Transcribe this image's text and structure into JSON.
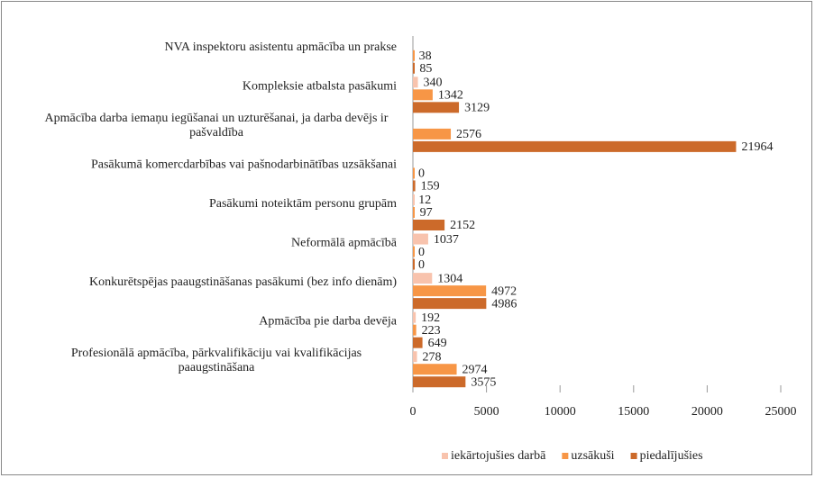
{
  "chart_data": {
    "type": "barh",
    "categories": [
      "NVA inspektoru asistentu apmācība un prakse",
      "Kompleksie atbalsta pasākumi",
      "Apmācība darba iemaņu iegūšanai un uzturēšanai, ja darba devējs ir pašvaldība",
      "Pasākumā komercdarbības vai pašnodarbinātības uzsākšanai",
      "Pasākumi noteiktām personu grupām",
      "Neformālā apmācībā",
      "Konkurētspējas paaugstināšanas pasākumi (bez info dienām)",
      "Apmācība pie darba devēja",
      "Profesionālā apmācība, pārkvalifikāciju vai kvalifikācijas paaugstināšana"
    ],
    "series": [
      {
        "name": "iekārtojušies darbā",
        "color": "#f8c3ad",
        "values": [
          null,
          340,
          null,
          null,
          12,
          1037,
          1304,
          192,
          278
        ]
      },
      {
        "name": "uzsākuši",
        "color": "#f79646",
        "values": [
          38,
          1342,
          2576,
          0,
          97,
          0,
          4972,
          223,
          2974
        ]
      },
      {
        "name": "piedalījušies",
        "color": "#cc6a2a",
        "values": [
          85,
          3129,
          21964,
          159,
          2152,
          0,
          4986,
          649,
          3575
        ]
      }
    ],
    "xlim": [
      0,
      25000
    ],
    "xticks": [
      0,
      5000,
      10000,
      15000,
      20000,
      25000
    ],
    "legend": "bottom"
  }
}
